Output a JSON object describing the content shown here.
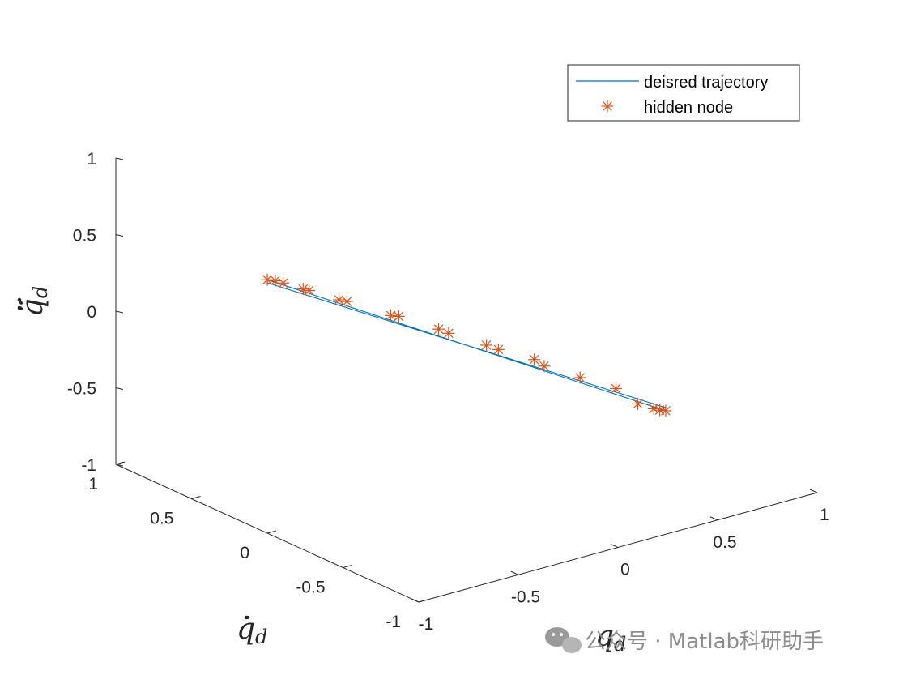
{
  "chart_data": {
    "type": "line3d",
    "title": "",
    "xlabel": "q_d",
    "ylabel": "q̇_d",
    "zlabel": "q̈_d",
    "xlim": [
      -1,
      1
    ],
    "ylim": [
      -1,
      1
    ],
    "zlim": [
      -1,
      1
    ],
    "x_ticks": [
      "-1",
      "-0.5",
      "0",
      "0.5",
      "1"
    ],
    "y_ticks": [
      "-1",
      "-0.5",
      "0",
      "0.5",
      "1"
    ],
    "z_ticks": [
      "-1",
      "-0.5",
      "0",
      "0.5",
      "1"
    ],
    "grid": false,
    "legend_position": "top-right",
    "series": [
      {
        "name": "deisred trajectory",
        "type": "line",
        "color": "#0072BD",
        "x": [
          -1,
          -1,
          1,
          1,
          -1
        ],
        "y": [
          0,
          0,
          0,
          0,
          0
        ],
        "z": [
          0.655,
          0.635,
          -0.895,
          -0.915,
          0.655
        ]
      },
      {
        "name": "hidden  node",
        "type": "scatter",
        "marker": "asterisk",
        "color": "#D95319",
        "x": [
          -1,
          -0.96,
          -0.92,
          -0.82,
          -0.79,
          -0.64,
          -0.6,
          -0.38,
          -0.34,
          -0.14,
          -0.09,
          0.1,
          0.16,
          0.34,
          0.39,
          0.57,
          0.75,
          0.86,
          0.94,
          0.97,
          1
        ],
        "y": [
          0,
          0,
          0,
          0,
          0,
          0,
          0,
          0,
          0,
          0,
          0,
          0,
          0,
          0,
          0,
          0,
          0,
          0,
          0,
          0,
          0
        ],
        "z": [
          0.655,
          0.635,
          0.605,
          0.53,
          0.51,
          0.395,
          0.37,
          0.2,
          0.18,
          0.025,
          -0.02,
          -0.165,
          -0.215,
          -0.345,
          -0.405,
          -0.545,
          -0.68,
          -0.82,
          -0.88,
          -0.9,
          -0.915
        ]
      }
    ]
  },
  "watermark": {
    "text": "公众号 · Matlab科研助手",
    "icon": "wechat-icon",
    "color": "#8c8c8c"
  }
}
